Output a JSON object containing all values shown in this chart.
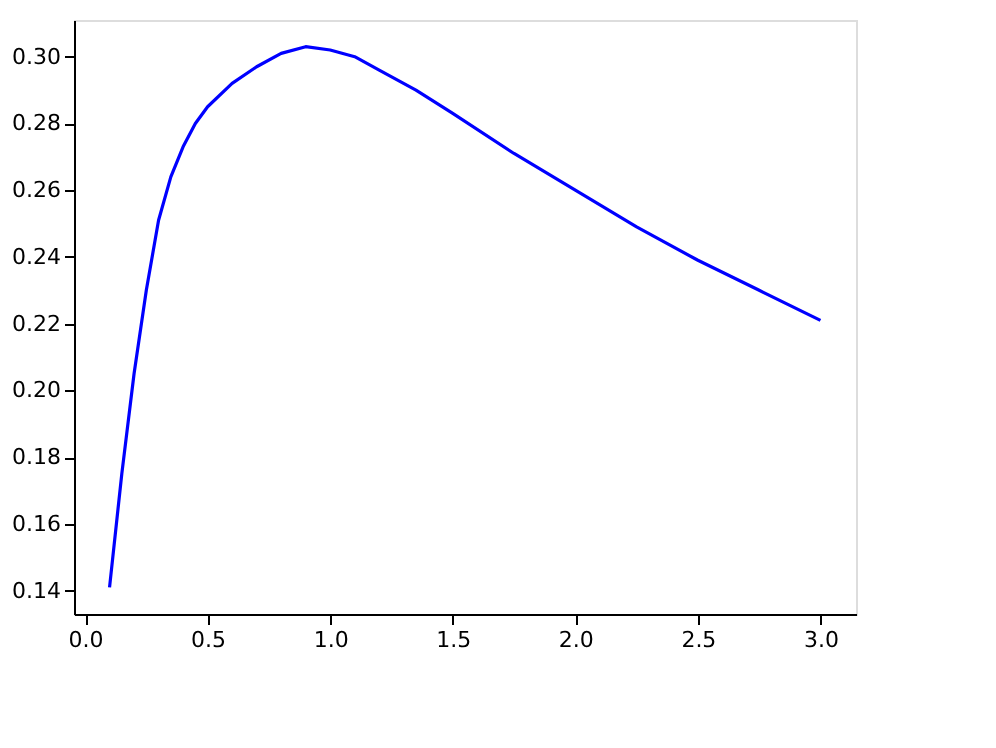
{
  "chart_data": {
    "type": "line",
    "x": [
      0.1,
      0.15,
      0.2,
      0.25,
      0.3,
      0.35,
      0.4,
      0.45,
      0.5,
      0.6,
      0.7,
      0.8,
      0.9,
      1.0,
      1.1,
      1.2,
      1.35,
      1.5,
      1.75,
      2.0,
      2.25,
      2.5,
      2.75,
      3.0
    ],
    "series": [
      {
        "color": "#0000ff",
        "values": [
          0.141,
          0.175,
          0.205,
          0.23,
          0.251,
          0.264,
          0.273,
          0.28,
          0.285,
          0.292,
          0.297,
          0.301,
          0.303,
          0.302,
          0.3,
          0.296,
          0.29,
          0.283,
          0.271,
          0.26,
          0.249,
          0.239,
          0.23,
          0.221
        ]
      }
    ],
    "xlim": [
      -0.045,
      3.145
    ],
    "ylim": [
      0.133,
      0.311
    ],
    "xticks": [
      {
        "value": 0.0,
        "label": "0.0"
      },
      0.5,
      {
        "value": 1.0,
        "label": "1.0"
      },
      1.5,
      {
        "value": 2.0,
        "label": "2.0"
      },
      2.5,
      {
        "value": 3.0,
        "label": "3.0"
      }
    ],
    "yticks": [
      0.14,
      0.16,
      0.18,
      {
        "value": 0.2,
        "label": "0.20"
      },
      0.22,
      0.24,
      0.26,
      0.28,
      {
        "value": 0.3,
        "label": "0.30"
      }
    ],
    "grid": false,
    "line_style": "solid",
    "marker": "none"
  }
}
